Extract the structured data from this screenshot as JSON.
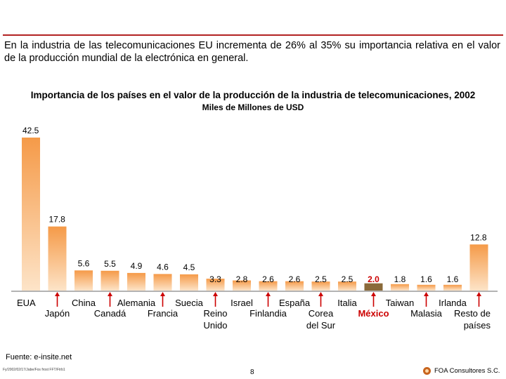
{
  "intro_text": "En la industria de las telecomunicaciones EU incrementa de 26% al 35% su importancia relativa en el valor de la producción mundial de la electrónica en general.",
  "chart_data": {
    "type": "bar",
    "title": "Importancia de los países en el valor de la producción de la industria de telecomunicaciones, 2002",
    "subtitle": "Miles de Millones de USD",
    "categories": [
      "EUA",
      "Japón",
      "China",
      "Canadá",
      "Alemania",
      "Francia",
      "Suecia",
      "Reino Unido",
      "Israel",
      "Finlandia",
      "España",
      "Corea del Sur",
      "Italia",
      "México",
      "Taiwan",
      "Malasia",
      "Irlanda",
      "Resto de países"
    ],
    "category_lines": [
      [
        "EUA"
      ],
      [
        "Japón"
      ],
      [
        "China"
      ],
      [
        "Canadá"
      ],
      [
        "Alemania"
      ],
      [
        "Francia"
      ],
      [
        "Suecia"
      ],
      [
        "Reino",
        "Unido"
      ],
      [
        "Israel"
      ],
      [
        "Finlandia"
      ],
      [
        "España"
      ],
      [
        "Corea",
        "del Sur"
      ],
      [
        "Italia"
      ],
      [
        "México"
      ],
      [
        "Taiwan"
      ],
      [
        "Malasia"
      ],
      [
        "Irlanda"
      ],
      [
        "Resto de",
        "países"
      ]
    ],
    "values": [
      42.5,
      17.8,
      5.6,
      5.5,
      4.9,
      4.6,
      4.5,
      3.3,
      2.8,
      2.6,
      2.6,
      2.5,
      2.5,
      2.0,
      1.8,
      1.6,
      1.6,
      12.8
    ],
    "value_labels": [
      "42.5",
      "17.8",
      "5.6",
      "5.5",
      "4.9",
      "4.6",
      "4.5",
      "3.3",
      "2.8",
      "2.6",
      "2.6",
      "2.5",
      "2.5",
      "2.0",
      "1.8",
      "1.6",
      "1.6",
      "12.8"
    ],
    "highlight": "México",
    "highlight_color": "#cc0000",
    "bar_color_top": "#f59a48",
    "bar_color_bottom": "#fde4c8",
    "highlight_bar_color": "#8a6a3a",
    "arrow_color": "#cc0000",
    "arrow_markers": [
      "Japón",
      "Canadá",
      "Francia",
      "Reino Unido",
      "Finlandia",
      "Corea del Sur",
      "México",
      "Malasia",
      "Resto de países"
    ],
    "ylim": [
      0,
      45
    ],
    "xlabel": "",
    "ylabel": ""
  },
  "footer": {
    "source": "Fuente: e-insite.net",
    "code": "Fy/2002/02/17/Jabe/Fos frost FFT/Ftrb1",
    "page_number": "8",
    "brand": "FOA Consultores S.C."
  }
}
